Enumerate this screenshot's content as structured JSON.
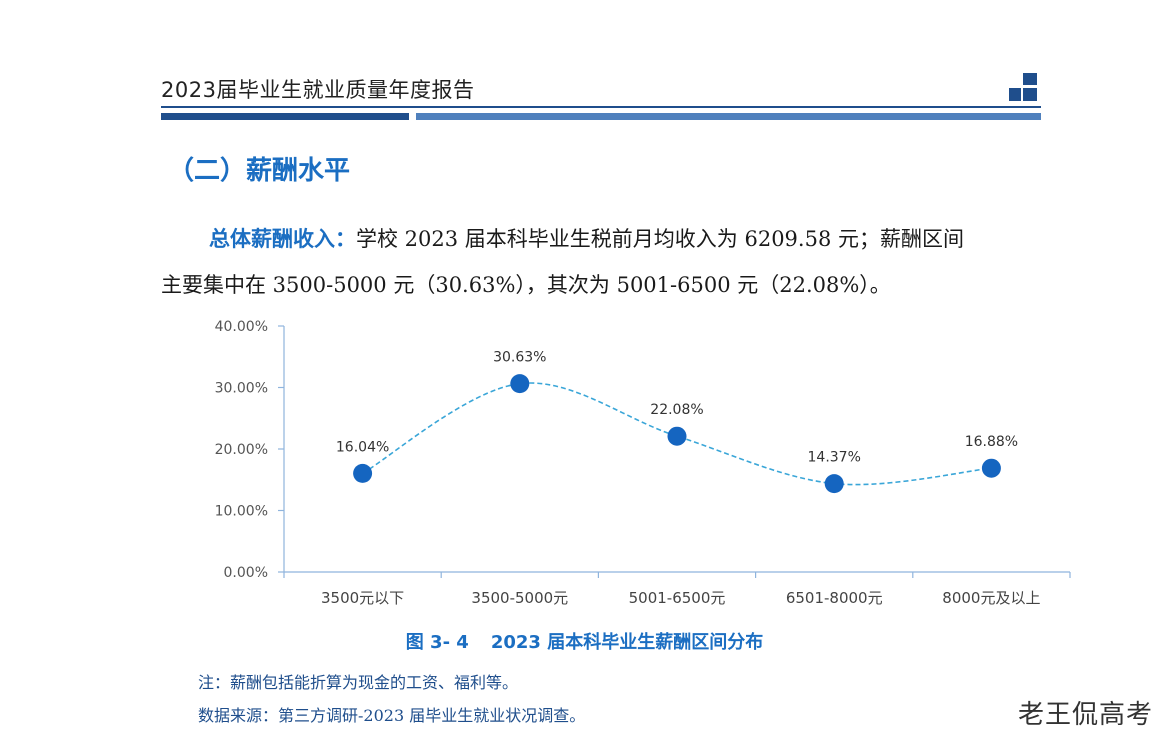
{
  "header": {
    "title": "2023届毕业生就业质量年度报告"
  },
  "section": {
    "title": "（二）薪酬水平"
  },
  "paragraph": {
    "lead": "总体薪酬收入：",
    "line1_rest": "学校 2023 届本科毕业生税前月均收入为 6209.58 元；薪酬区间",
    "line2": "主要集中在 3500-5000 元（30.63%），其次为 5001-6500 元（22.08%）。"
  },
  "chart_data": {
    "type": "line",
    "categories": [
      "3500元以下",
      "3500-5000元",
      "5001-6500元",
      "6501-8000元",
      "8000元及以上"
    ],
    "values": [
      16.04,
      30.63,
      22.08,
      14.37,
      16.88
    ],
    "data_labels": [
      "16.04%",
      "30.63%",
      "22.08%",
      "14.37%",
      "16.88%"
    ],
    "yticks": [
      "0.00%",
      "10.00%",
      "20.00%",
      "30.00%",
      "40.00%"
    ],
    "ylim": [
      0,
      40
    ],
    "line_style": "dashed",
    "smooth": true,
    "line_color": "#3aa6d8",
    "marker_color": "#1565c0",
    "axis_color": "#8fb4dd"
  },
  "caption": {
    "number": "图 3- 4",
    "text": "2023 届本科毕业生薪酬区间分布"
  },
  "notes": {
    "note": "注：薪酬包括能折算为现金的工资、福利等。",
    "source": "数据来源：第三方调研-2023 届毕业生就业状况调查。"
  },
  "watermark": "老王侃高考"
}
